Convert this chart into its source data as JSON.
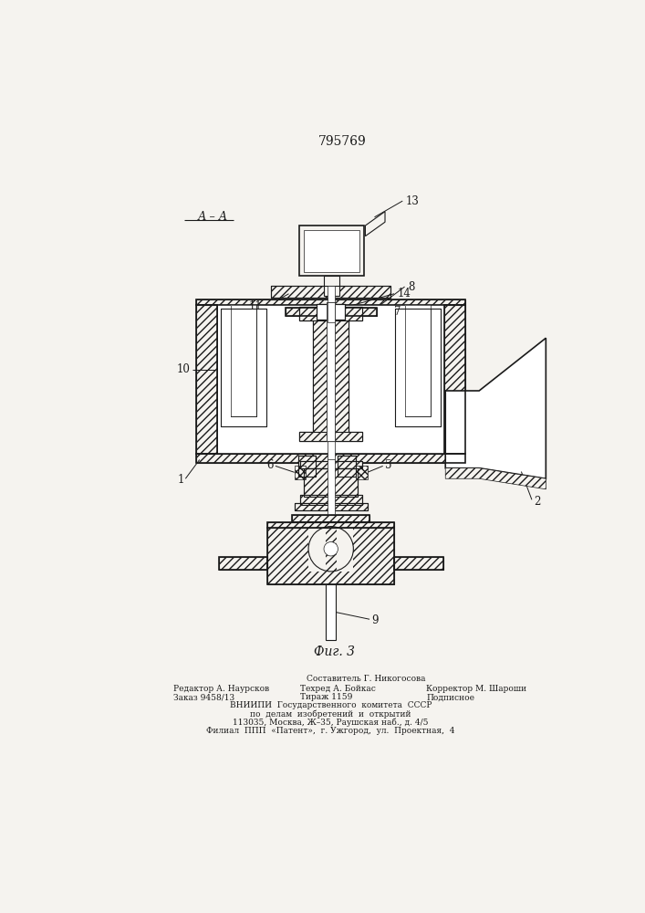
{
  "patent_number": "795769",
  "figure_label": "Фиг. 3",
  "section_label": "А – А",
  "bg_color": "#f5f3ef",
  "line_color": "#1a1a1a",
  "footer_lines": [
    "Составитель Г. Никогосова",
    "Редактор А. Наурсков          Техред А. Бойкас         Корректор М. Шароши",
    "Заказ 9458/13                Тираж 1159               Подписное",
    "ВНИИПИ  Государственного  комитета  СССР",
    "по  делам  изобретений  и  открытий",
    "113035, Москва, Ж–35, Раушская наб., д. 4/5",
    "Филиал  ППП  «Патент»,  г. Ужгород,  ул.  Проектная,  4"
  ]
}
